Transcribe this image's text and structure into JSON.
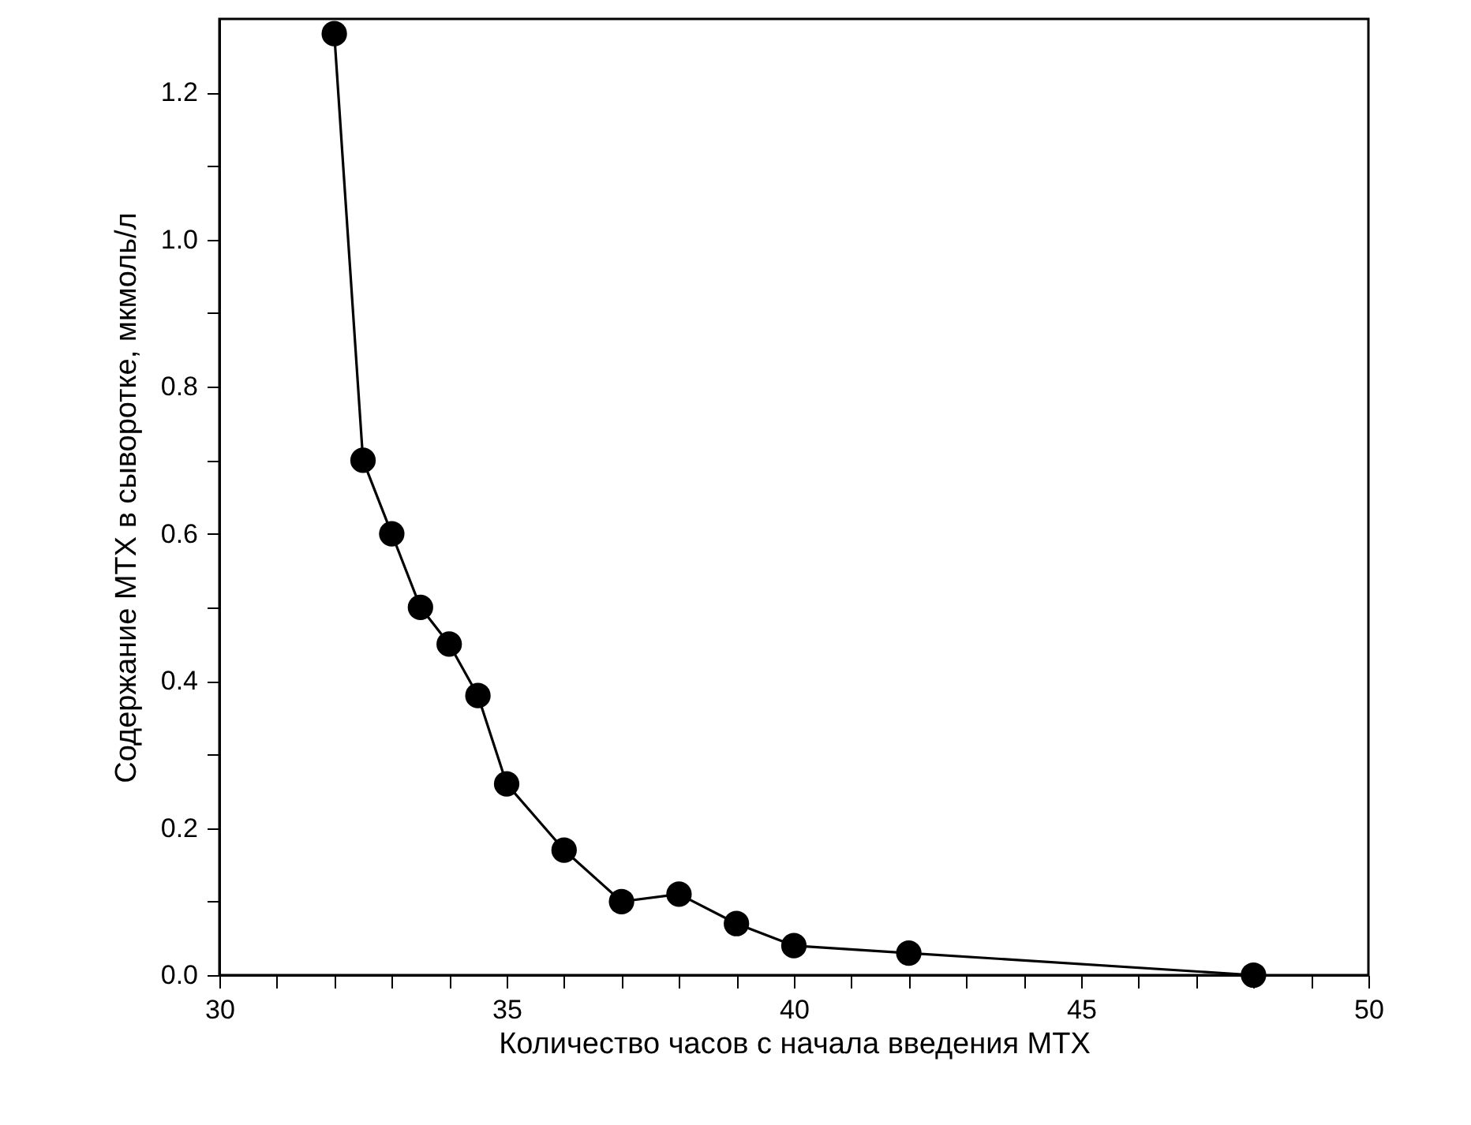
{
  "chart_data": {
    "type": "line",
    "xlabel": "Количество часов с начала введения МТХ",
    "ylabel": "Содержание МТХ в сыворотке, мкмоль/л",
    "x": [
      32,
      32.5,
      33,
      33.5,
      34,
      34.5,
      35,
      36,
      37,
      38,
      39,
      40,
      42,
      48
    ],
    "series": [
      {
        "color": "#000000",
        "values": [
          1.28,
          0.7,
          0.6,
          0.5,
          0.45,
          0.38,
          0.26,
          0.17,
          0.1,
          0.11,
          0.07,
          0.04,
          0.03,
          0.0
        ]
      }
    ],
    "xlim": [
      30,
      50
    ],
    "ylim": [
      0,
      1.3
    ],
    "xticks": [
      30,
      {
        "value": 31,
        "label": null
      },
      {
        "value": 32,
        "label": null
      },
      {
        "value": 33,
        "label": null
      },
      {
        "value": 34,
        "label": null
      },
      35,
      {
        "value": 36,
        "label": null
      },
      {
        "value": 37,
        "label": null
      },
      {
        "value": 38,
        "label": null
      },
      {
        "value": 39,
        "label": null
      },
      40,
      {
        "value": 41,
        "label": null
      },
      {
        "value": 42,
        "label": null
      },
      {
        "value": 43,
        "label": null
      },
      {
        "value": 44,
        "label": null
      },
      45,
      {
        "value": 46,
        "label": null
      },
      {
        "value": 47,
        "label": null
      },
      {
        "value": 48,
        "label": null
      },
      {
        "value": 49,
        "label": null
      },
      50
    ],
    "yticks": [
      {
        "value": 0,
        "label": "0.0"
      },
      {
        "value": 0.1,
        "label": null
      },
      {
        "value": 0.2,
        "label": "0.2"
      },
      {
        "value": 0.3,
        "label": null
      },
      {
        "value": 0.4,
        "label": "0.4"
      },
      {
        "value": 0.5,
        "label": null
      },
      {
        "value": 0.6,
        "label": "0.6"
      },
      {
        "value": 0.7,
        "label": null
      },
      {
        "value": 0.8,
        "label": "0.8"
      },
      {
        "value": 0.9,
        "label": null
      },
      {
        "value": 1.0,
        "label": "1.0"
      },
      {
        "value": 1.1,
        "label": null
      },
      {
        "value": 1.2,
        "label": "1.2"
      }
    ],
    "grid": false,
    "marker": "circle",
    "line_style": "solid"
  }
}
